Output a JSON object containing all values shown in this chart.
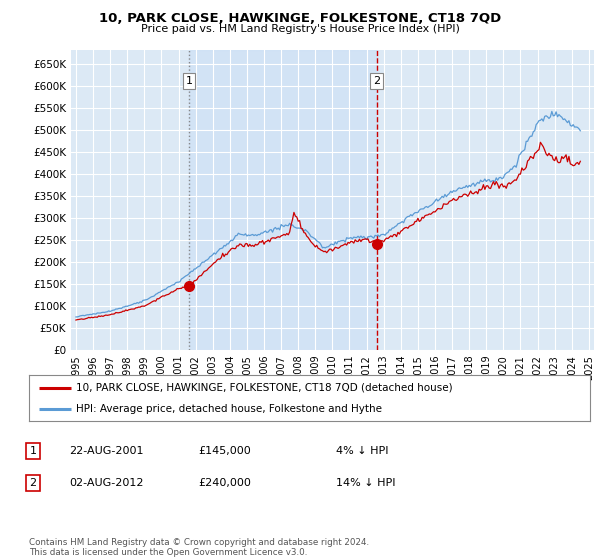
{
  "title": "10, PARK CLOSE, HAWKINGE, FOLKESTONE, CT18 7QD",
  "subtitle": "Price paid vs. HM Land Registry's House Price Index (HPI)",
  "ylabel_ticks": [
    "£0",
    "£50K",
    "£100K",
    "£150K",
    "£200K",
    "£250K",
    "£300K",
    "£350K",
    "£400K",
    "£450K",
    "£500K",
    "£550K",
    "£600K",
    "£650K"
  ],
  "ytick_values": [
    0,
    50000,
    100000,
    150000,
    200000,
    250000,
    300000,
    350000,
    400000,
    450000,
    500000,
    550000,
    600000,
    650000
  ],
  "ylim": [
    0,
    680000
  ],
  "background_color": "#ffffff",
  "plot_bg_color": "#dce9f5",
  "plot_bg_color_outside": "#e8f0f8",
  "grid_color": "#ffffff",
  "hpi_color": "#5b9bd5",
  "price_color": "#cc0000",
  "sale1_date": "22-AUG-2001",
  "sale1_price": 145000,
  "sale1_label": "4% ↓ HPI",
  "sale2_date": "02-AUG-2012",
  "sale2_price": 240000,
  "sale2_label": "14% ↓ HPI",
  "legend_label1": "10, PARK CLOSE, HAWKINGE, FOLKESTONE, CT18 7QD (detached house)",
  "legend_label2": "HPI: Average price, detached house, Folkestone and Hythe",
  "footer": "Contains HM Land Registry data © Crown copyright and database right 2024.\nThis data is licensed under the Open Government Licence v3.0.",
  "sale_points": [
    {
      "date": 2001.625,
      "price": 145000,
      "label": "1",
      "vline_color": "#888888",
      "vline_style": "dotted"
    },
    {
      "date": 2012.583,
      "price": 240000,
      "label": "2",
      "vline_color": "#cc0000",
      "vline_style": "dashed"
    }
  ],
  "xtick_years": [
    1995,
    1996,
    1997,
    1998,
    1999,
    2000,
    2001,
    2002,
    2003,
    2004,
    2005,
    2006,
    2007,
    2008,
    2009,
    2010,
    2011,
    2012,
    2013,
    2014,
    2015,
    2016,
    2017,
    2018,
    2019,
    2020,
    2021,
    2022,
    2023,
    2024,
    2025
  ],
  "xlim_left": 1994.7,
  "xlim_right": 2025.3
}
